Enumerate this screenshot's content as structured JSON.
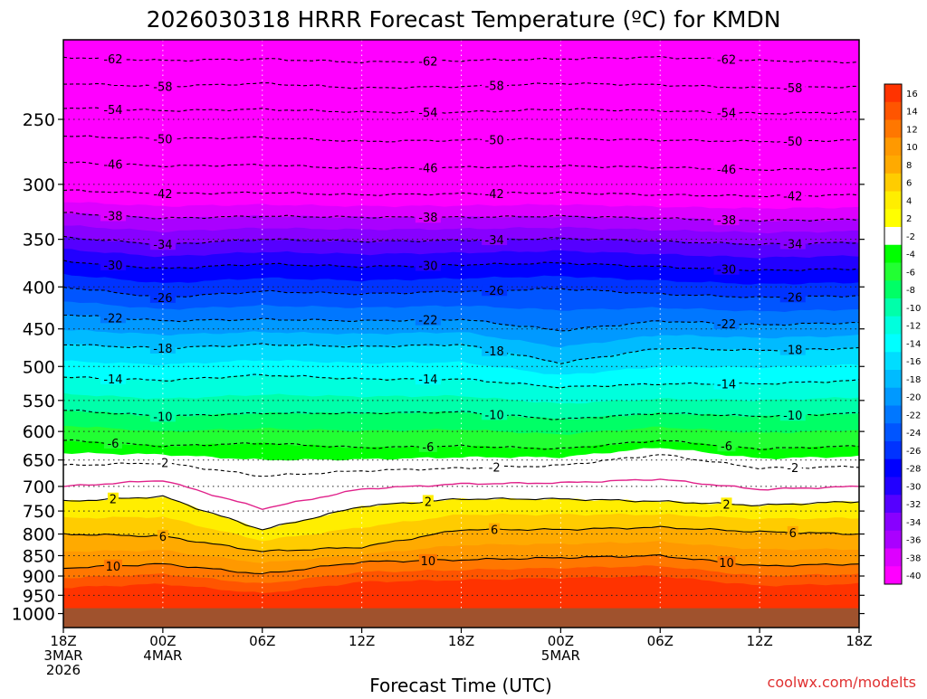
{
  "chart_data": {
    "type": "heatmap",
    "title": "2026030318 HRRR Forecast Temperature (ºC) for KMDN",
    "xlabel": "Forecast Time (UTC)",
    "ylabel": "",
    "credit": "coolwx.com/modelts",
    "y_axis": {
      "scale": "log",
      "inverted": true,
      "ticks": [
        250,
        300,
        350,
        400,
        450,
        500,
        550,
        600,
        650,
        700,
        750,
        800,
        850,
        900,
        950,
        1000
      ],
      "range": [
        1040,
        200
      ],
      "dotted_grid": true
    },
    "x_axis": {
      "range_hours": [
        0,
        48
      ],
      "dotted_grid": true,
      "ticks": [
        {
          "hour": 0,
          "lines": [
            "18Z",
            "3MAR",
            "2026"
          ]
        },
        {
          "hour": 6,
          "lines": [
            "00Z",
            "4MAR"
          ]
        },
        {
          "hour": 12,
          "lines": [
            "06Z"
          ]
        },
        {
          "hour": 18,
          "lines": [
            "12Z"
          ]
        },
        {
          "hour": 24,
          "lines": [
            "18Z"
          ]
        },
        {
          "hour": 30,
          "lines": [
            "00Z",
            "5MAR"
          ]
        },
        {
          "hour": 36,
          "lines": [
            "06Z"
          ]
        },
        {
          "hour": 42,
          "lines": [
            "12Z"
          ]
        },
        {
          "hour": 48,
          "lines": [
            "18Z"
          ]
        }
      ]
    },
    "colorbar": {
      "labels": [
        "16",
        "14",
        "12",
        "10",
        "8",
        "6",
        "4",
        "2",
        "-2",
        "-4",
        "-6",
        "-8",
        "-10",
        "-12",
        "-14",
        "-16",
        "-18",
        "-20",
        "-22",
        "-24",
        "-26",
        "-28",
        "-30",
        "-32",
        "-34",
        "-36",
        "-38",
        "-40"
      ],
      "colors": [
        "#ff3300",
        "#ff5500",
        "#ff7700",
        "#ff9900",
        "#ffaa00",
        "#ffcc00",
        "#ffee00",
        "#ffff00",
        "#ffffff",
        "#00ff00",
        "#22ff33",
        "#00ff66",
        "#00ffaa",
        "#00ffdd",
        "#00ffff",
        "#00ddff",
        "#00bbff",
        "#0099ff",
        "#0077ff",
        "#0055ff",
        "#0033ff",
        "#0000ff",
        "#2200ff",
        "#5500ff",
        "#8800ff",
        "#aa00ff",
        "#dd00ff",
        "#ff00ff"
      ]
    },
    "freezing_line_color": "#e0218a",
    "ground_color": "#a0522d",
    "contour_levels": [
      -62,
      -58,
      -54,
      -50,
      -46,
      -42,
      -38,
      -34,
      -30,
      -26,
      -22,
      -18,
      -14,
      -10,
      -6,
      -2,
      2,
      6,
      10
    ],
    "series": [
      {
        "temp": -62,
        "p": [
          210,
          212,
          211,
          213,
          212,
          211,
          210,
          212,
          213
        ]
      },
      {
        "temp": -58,
        "p": [
          226,
          228,
          226,
          229,
          228,
          226,
          227,
          229,
          228
        ]
      },
      {
        "temp": -54,
        "p": [
          242,
          244,
          243,
          245,
          245,
          243,
          244,
          246,
          245
        ]
      },
      {
        "temp": -50,
        "p": [
          262,
          264,
          263,
          266,
          265,
          264,
          265,
          266,
          265
        ]
      },
      {
        "temp": -46,
        "p": [
          282,
          285,
          284,
          287,
          286,
          285,
          286,
          288,
          287
        ]
      },
      {
        "temp": -42,
        "p": [
          305,
          308,
          307,
          309,
          308,
          307,
          309,
          310,
          309
        ]
      },
      {
        "temp": -38,
        "p": [
          325,
          330,
          328,
          329,
          329,
          328,
          330,
          332,
          331
        ]
      },
      {
        "temp": -34,
        "p": [
          348,
          355,
          350,
          352,
          351,
          349,
          352,
          355,
          353
        ]
      },
      {
        "temp": -30,
        "p": [
          372,
          380,
          375,
          378,
          376,
          374,
          378,
          382,
          380
        ]
      },
      {
        "temp": -26,
        "p": [
          400,
          412,
          405,
          408,
          405,
          402,
          408,
          412,
          410
        ]
      },
      {
        "temp": -22,
        "p": [
          432,
          440,
          438,
          440,
          438,
          452,
          440,
          445,
          442
        ]
      },
      {
        "temp": -18,
        "p": [
          470,
          475,
          470,
          473,
          470,
          495,
          475,
          478,
          475
        ]
      },
      {
        "temp": -14,
        "p": [
          515,
          520,
          512,
          518,
          518,
          530,
          525,
          525,
          520
        ]
      },
      {
        "temp": -10,
        "p": [
          565,
          575,
          570,
          570,
          568,
          580,
          570,
          575,
          570
        ]
      },
      {
        "temp": -6,
        "p": [
          615,
          625,
          620,
          628,
          625,
          630,
          615,
          630,
          625
        ]
      },
      {
        "temp": -2,
        "p": [
          660,
          655,
          680,
          670,
          665,
          660,
          640,
          665,
          662
        ]
      },
      {
        "temp": 2,
        "p": [
          730,
          720,
          790,
          740,
          725,
          725,
          730,
          738,
          730
        ]
      },
      {
        "temp": 6,
        "p": [
          800,
          805,
          840,
          830,
          790,
          790,
          785,
          795,
          800
        ]
      },
      {
        "temp": 10,
        "p": [
          880,
          870,
          895,
          865,
          860,
          855,
          850,
          875,
          870
        ]
      }
    ],
    "freezing_line": [
      700,
      688,
      745,
      705,
      695,
      693,
      686,
      706,
      700
    ]
  }
}
